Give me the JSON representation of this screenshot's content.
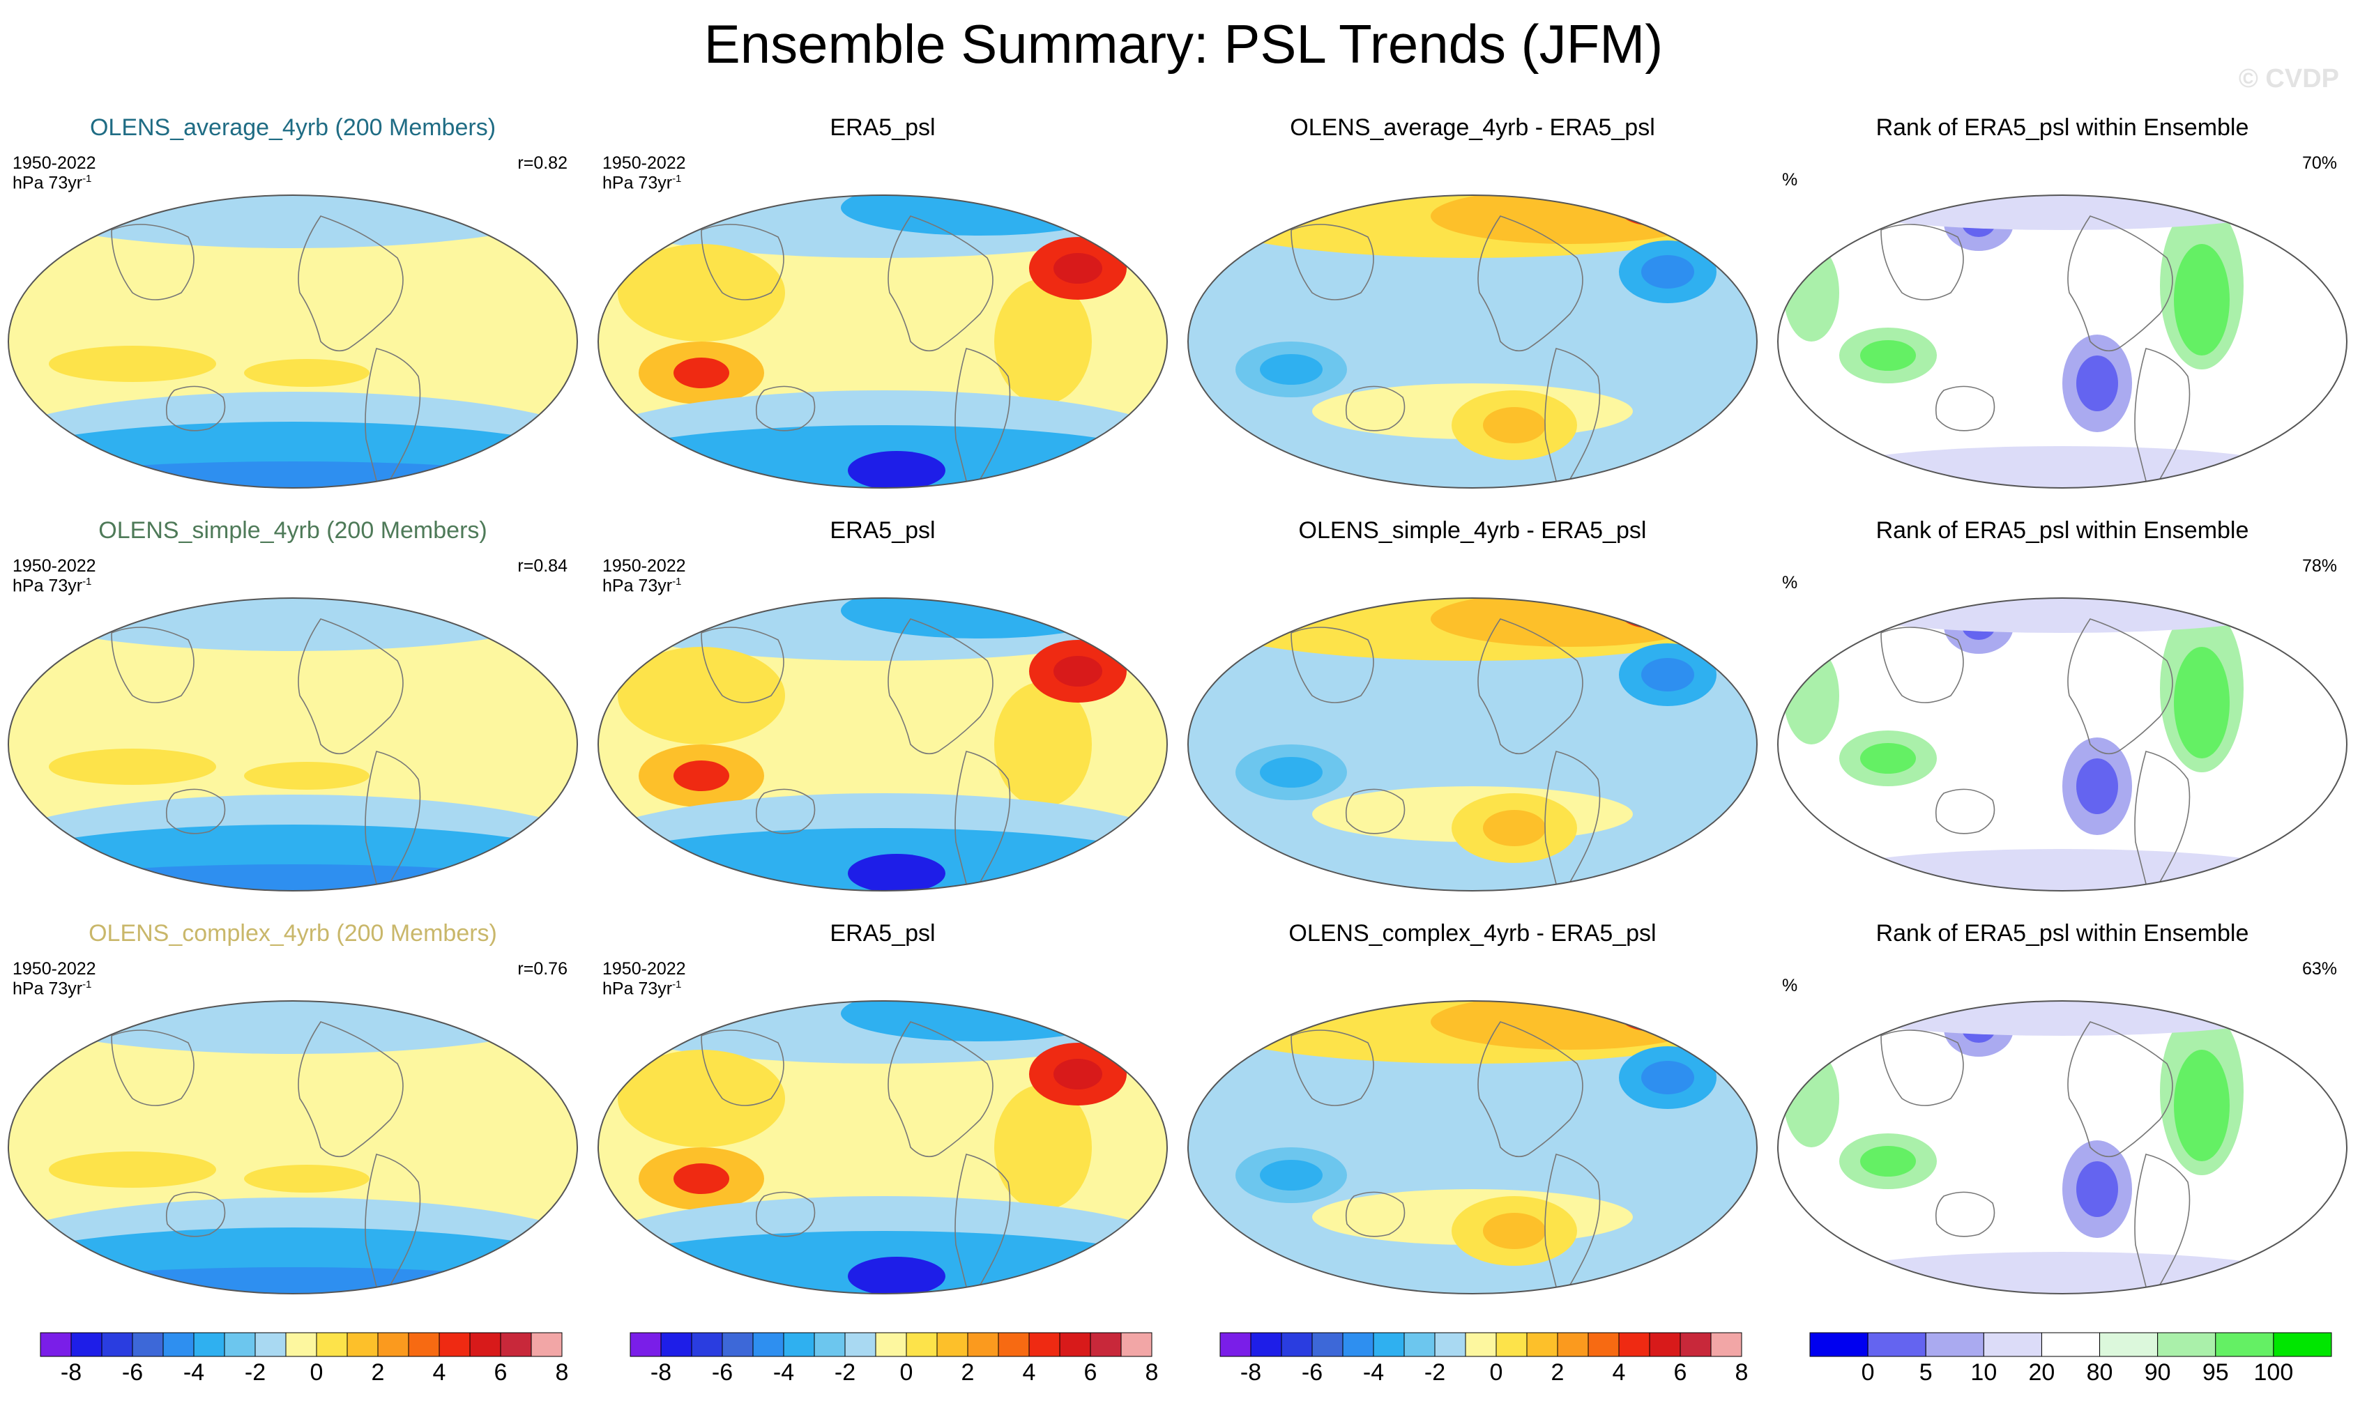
{
  "title": "Ensemble Summary: PSL Trends (JFM)",
  "watermark": "© CVDP",
  "panels": [
    {
      "title": "OLENS_average_4yrb (200 Members)",
      "title_color": "#1f6c84",
      "period": "1950-2022",
      "unit": "hPa 73yr",
      "unit_sup": "-1",
      "stat": "r=0.82",
      "kind": "ensemble",
      "map_variant": 0
    },
    {
      "title": "ERA5_psl",
      "title_color": "#000000",
      "period": "1950-2022",
      "unit": "hPa 73yr",
      "unit_sup": "-1",
      "stat": "",
      "kind": "obs",
      "map_variant": 0
    },
    {
      "title": "OLENS_average_4yrb - ERA5_psl",
      "title_color": "#000000",
      "period": "",
      "unit": "",
      "unit_sup": "",
      "stat": "",
      "kind": "diff",
      "map_variant": 0
    },
    {
      "title": "Rank of ERA5_psl within Ensemble",
      "title_color": "#000000",
      "period": "",
      "unit": "",
      "unit_sup": "",
      "pct": "%",
      "stat": "70%",
      "kind": "rank",
      "map_variant": 0
    },
    {
      "title": "OLENS_simple_4yrb (200 Members)",
      "title_color": "#4e7a58",
      "period": "1950-2022",
      "unit": "hPa 73yr",
      "unit_sup": "-1",
      "stat": "r=0.84",
      "kind": "ensemble",
      "map_variant": 1
    },
    {
      "title": "ERA5_psl",
      "title_color": "#000000",
      "period": "1950-2022",
      "unit": "hPa 73yr",
      "unit_sup": "-1",
      "stat": "",
      "kind": "obs",
      "map_variant": 1
    },
    {
      "title": "OLENS_simple_4yrb - ERA5_psl",
      "title_color": "#000000",
      "period": "",
      "unit": "",
      "unit_sup": "",
      "stat": "",
      "kind": "diff",
      "map_variant": 1
    },
    {
      "title": "Rank of ERA5_psl within Ensemble",
      "title_color": "#000000",
      "period": "",
      "unit": "",
      "unit_sup": "",
      "pct": "%",
      "stat": "78%",
      "kind": "rank",
      "map_variant": 1
    },
    {
      "title": "OLENS_complex_4yrb (200 Members)",
      "title_color": "#c9b76a",
      "period": "1950-2022",
      "unit": "hPa 73yr",
      "unit_sup": "-1",
      "stat": "r=0.76",
      "kind": "ensemble",
      "map_variant": 2
    },
    {
      "title": "ERA5_psl",
      "title_color": "#000000",
      "period": "1950-2022",
      "unit": "hPa 73yr",
      "unit_sup": "-1",
      "stat": "",
      "kind": "obs",
      "map_variant": 2
    },
    {
      "title": "OLENS_complex_4yrb - ERA5_psl",
      "title_color": "#000000",
      "period": "",
      "unit": "",
      "unit_sup": "",
      "stat": "",
      "kind": "diff",
      "map_variant": 2
    },
    {
      "title": "Rank of ERA5_psl within Ensemble",
      "title_color": "#000000",
      "period": "",
      "unit": "",
      "unit_sup": "",
      "pct": "%",
      "stat": "63%",
      "kind": "rank",
      "map_variant": 2
    }
  ],
  "colorbars": [
    {
      "kind": "trend",
      "colors": [
        "#7a1ee8",
        "#1e1ee8",
        "#2a3de0",
        "#3d68d8",
        "#2e8ff0",
        "#2fb0f0",
        "#6cc6ee",
        "#a9d9f2",
        "#fdf79f",
        "#fde34a",
        "#fdc02a",
        "#fb9a1e",
        "#f76a12",
        "#ef2a12",
        "#d81a1a",
        "#c8283a",
        "#f2a6a6"
      ],
      "ticks": [
        "-8",
        "-6",
        "-4",
        "-2",
        "0",
        "2",
        "4",
        "6",
        "8"
      ]
    },
    {
      "kind": "trend",
      "colors": [
        "#7a1ee8",
        "#1e1ee8",
        "#2a3de0",
        "#3d68d8",
        "#2e8ff0",
        "#2fb0f0",
        "#6cc6ee",
        "#a9d9f2",
        "#fdf79f",
        "#fde34a",
        "#fdc02a",
        "#fb9a1e",
        "#f76a12",
        "#ef2a12",
        "#d81a1a",
        "#c8283a",
        "#f2a6a6"
      ],
      "ticks": [
        "-8",
        "-6",
        "-4",
        "-2",
        "0",
        "2",
        "4",
        "6",
        "8"
      ]
    },
    {
      "kind": "trend",
      "colors": [
        "#7a1ee8",
        "#1e1ee8",
        "#2a3de0",
        "#3d68d8",
        "#2e8ff0",
        "#2fb0f0",
        "#6cc6ee",
        "#a9d9f2",
        "#fdf79f",
        "#fde34a",
        "#fdc02a",
        "#fb9a1e",
        "#f76a12",
        "#ef2a12",
        "#d81a1a",
        "#c8283a",
        "#f2a6a6"
      ],
      "ticks": [
        "-8",
        "-6",
        "-4",
        "-2",
        "0",
        "2",
        "4",
        "6",
        "8"
      ]
    },
    {
      "kind": "rank",
      "colors": [
        "#0000f0",
        "#6464f0",
        "#aaaaf0",
        "#dcdcf8",
        "#ffffff",
        "#dcf8dc",
        "#aaf0aa",
        "#64f064",
        "#00e600"
      ],
      "ticks": [
        "0",
        "5",
        "10",
        "20",
        "80",
        "90",
        "95",
        "100"
      ]
    }
  ],
  "chart_data": [
    {
      "type": "heatmap",
      "title": "OLENS_average_4yrb (200 Members)",
      "variable": "PSL trend",
      "units": "hPa 73yr-1",
      "period": "1950-2022",
      "season": "JFM",
      "pattern_correlation": 0.82,
      "levels": [
        -8,
        -7,
        -6,
        -5,
        -4,
        -3,
        -2,
        -1,
        0,
        1,
        2,
        3,
        4,
        5,
        6,
        7,
        8
      ]
    },
    {
      "type": "heatmap",
      "title": "ERA5_psl",
      "variable": "PSL trend",
      "units": "hPa 73yr-1",
      "period": "1950-2022",
      "season": "JFM",
      "levels": [
        -8,
        -7,
        -6,
        -5,
        -4,
        -3,
        -2,
        -1,
        0,
        1,
        2,
        3,
        4,
        5,
        6,
        7,
        8
      ]
    },
    {
      "type": "heatmap",
      "title": "OLENS_average_4yrb - ERA5_psl",
      "variable": "PSL trend difference",
      "units": "hPa 73yr-1",
      "levels": [
        -8,
        -7,
        -6,
        -5,
        -4,
        -3,
        -2,
        -1,
        0,
        1,
        2,
        3,
        4,
        5,
        6,
        7,
        8
      ]
    },
    {
      "type": "heatmap",
      "title": "Rank of ERA5_psl within Ensemble",
      "units": "%",
      "summary_percent": 70,
      "levels": [
        0,
        5,
        10,
        20,
        80,
        90,
        95,
        100
      ]
    },
    {
      "type": "heatmap",
      "title": "OLENS_simple_4yrb (200 Members)",
      "variable": "PSL trend",
      "units": "hPa 73yr-1",
      "period": "1950-2022",
      "season": "JFM",
      "pattern_correlation": 0.84,
      "levels": [
        -8,
        -7,
        -6,
        -5,
        -4,
        -3,
        -2,
        -1,
        0,
        1,
        2,
        3,
        4,
        5,
        6,
        7,
        8
      ]
    },
    {
      "type": "heatmap",
      "title": "ERA5_psl",
      "variable": "PSL trend",
      "units": "hPa 73yr-1",
      "period": "1950-2022",
      "season": "JFM",
      "levels": [
        -8,
        -7,
        -6,
        -5,
        -4,
        -3,
        -2,
        -1,
        0,
        1,
        2,
        3,
        4,
        5,
        6,
        7,
        8
      ]
    },
    {
      "type": "heatmap",
      "title": "OLENS_simple_4yrb - ERA5_psl",
      "variable": "PSL trend difference",
      "units": "hPa 73yr-1",
      "levels": [
        -8,
        -7,
        -6,
        -5,
        -4,
        -3,
        -2,
        -1,
        0,
        1,
        2,
        3,
        4,
        5,
        6,
        7,
        8
      ]
    },
    {
      "type": "heatmap",
      "title": "Rank of ERA5_psl within Ensemble",
      "units": "%",
      "summary_percent": 78,
      "levels": [
        0,
        5,
        10,
        20,
        80,
        90,
        95,
        100
      ]
    },
    {
      "type": "heatmap",
      "title": "OLENS_complex_4yrb (200 Members)",
      "variable": "PSL trend",
      "units": "hPa 73yr-1",
      "period": "1950-2022",
      "season": "JFM",
      "pattern_correlation": 0.76,
      "levels": [
        -8,
        -7,
        -6,
        -5,
        -4,
        -3,
        -2,
        -1,
        0,
        1,
        2,
        3,
        4,
        5,
        6,
        7,
        8
      ]
    },
    {
      "type": "heatmap",
      "title": "ERA5_psl",
      "variable": "PSL trend",
      "units": "hPa 73yr-1",
      "period": "1950-2022",
      "season": "JFM",
      "levels": [
        -8,
        -7,
        -6,
        -5,
        -4,
        -3,
        -2,
        -1,
        0,
        1,
        2,
        3,
        4,
        5,
        6,
        7,
        8
      ]
    },
    {
      "type": "heatmap",
      "title": "OLENS_complex_4yrb - ERA5_psl",
      "variable": "PSL trend difference",
      "units": "hPa 73yr-1",
      "levels": [
        -8,
        -7,
        -6,
        -5,
        -4,
        -3,
        -2,
        -1,
        0,
        1,
        2,
        3,
        4,
        5,
        6,
        7,
        8
      ]
    },
    {
      "type": "heatmap",
      "title": "Rank of ERA5_psl within Ensemble",
      "units": "%",
      "summary_percent": 63,
      "levels": [
        0,
        5,
        10,
        20,
        80,
        90,
        95,
        100
      ]
    }
  ]
}
